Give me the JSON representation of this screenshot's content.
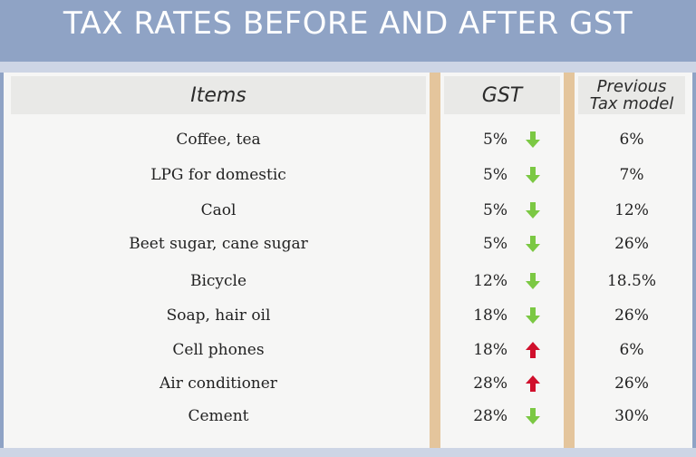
{
  "title": "TAX RATES BEFORE AND AFTER GST",
  "columns": {
    "items": "Items",
    "gst": "GST",
    "previous_line1": "Previous",
    "previous_line2": "Tax model"
  },
  "colors": {
    "down": "#7bc843",
    "up": "#d0102c"
  },
  "rows": [
    {
      "item": "Coffee, tea",
      "gst": "5%",
      "trend": "down",
      "previous": "6%"
    },
    {
      "item": "LPG for domestic",
      "gst": "5%",
      "trend": "down",
      "previous": "7%"
    },
    {
      "item": "Caol",
      "gst": "5%",
      "trend": "down",
      "previous": "12%"
    },
    {
      "item": "Beet sugar, cane sugar",
      "gst": "5%",
      "trend": "down",
      "previous": "26%"
    },
    {
      "item": "Bicycle",
      "gst": "12%",
      "trend": "down",
      "previous": "18.5%"
    },
    {
      "item": "Soap, hair oil",
      "gst": "18%",
      "trend": "down",
      "previous": "26%"
    },
    {
      "item": "Cell phones",
      "gst": "18%",
      "trend": "up",
      "previous": "6%"
    },
    {
      "item": "Air conditioner",
      "gst": "28%",
      "trend": "up",
      "previous": "26%"
    },
    {
      "item": "Cement",
      "gst": "28%",
      "trend": "down",
      "previous": "30%"
    }
  ]
}
